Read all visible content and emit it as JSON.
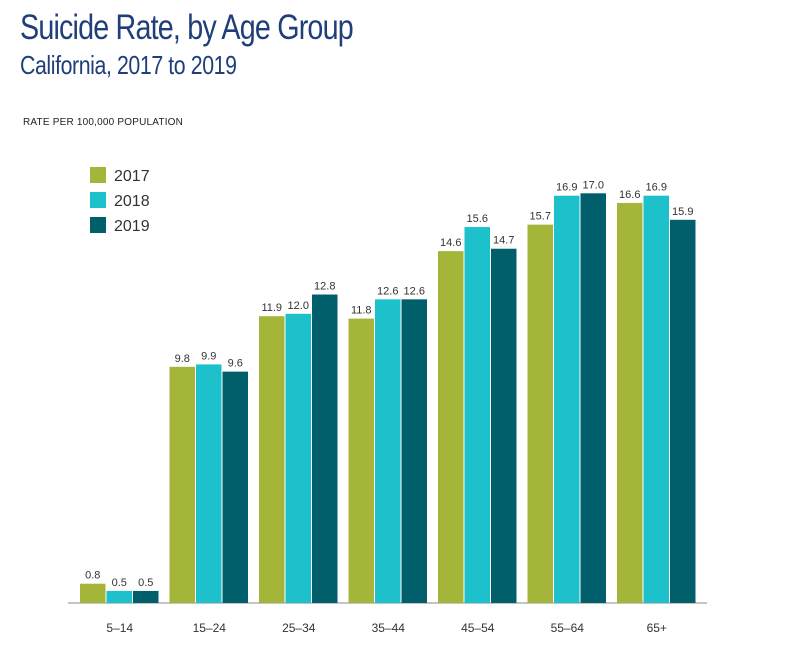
{
  "colors": {
    "title": "#1f3e7a",
    "series": [
      "#a4b539",
      "#1cc1cc",
      "#005f6b"
    ],
    "axis": "#888888",
    "text": "#333333"
  },
  "chart_data": {
    "type": "bar",
    "title": "Suicide Rate, by Age Group",
    "subtitle": "California, 2017 to 2019",
    "ylabel": "RATE PER 100,000 POPULATION",
    "xlabel": "",
    "categories": [
      "5–14",
      "15–24",
      "25–34",
      "35–44",
      "45–54",
      "55–64",
      "65+"
    ],
    "series": [
      {
        "name": "2017",
        "values": [
          0.8,
          9.8,
          11.9,
          11.8,
          14.6,
          15.7,
          16.6
        ],
        "labels": [
          "0.8",
          "9.8",
          "11.9",
          "11.8",
          "14.6",
          "15.7",
          "16.6"
        ]
      },
      {
        "name": "2018",
        "values": [
          0.5,
          9.9,
          12.0,
          12.6,
          15.6,
          16.9,
          16.9
        ],
        "labels": [
          "0.5",
          "9.9",
          "12.0",
          "12.6",
          "15.6",
          "16.9",
          "16.9"
        ]
      },
      {
        "name": "2019",
        "values": [
          0.5,
          9.6,
          12.8,
          12.6,
          14.7,
          17.0,
          15.9
        ],
        "labels": [
          "0.5",
          "9.6",
          "12.8",
          "12.6",
          "14.7",
          "17.0",
          "15.9"
        ]
      }
    ],
    "ylim": [
      0,
      17.5
    ],
    "grid": false,
    "legend": "top-left",
    "data_labels": true
  }
}
